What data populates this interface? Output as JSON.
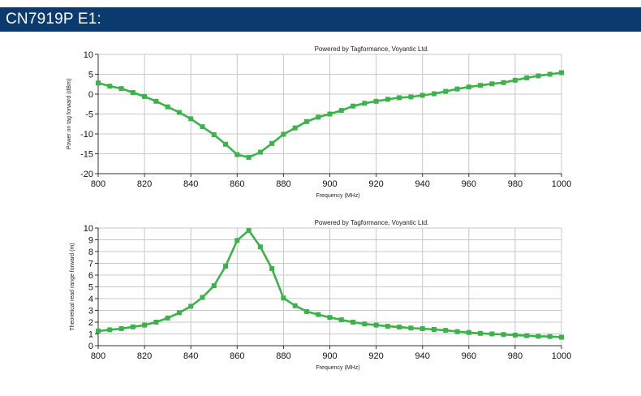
{
  "header": {
    "title": "CN7919P E1:"
  },
  "colors": {
    "header_bg": "#0b3a6e",
    "series": "#3cb34a",
    "grid": "#c8c8c8"
  },
  "chart_data": [
    {
      "type": "line",
      "annotation": "Powered by Tagformance, Voyantic Ltd.",
      "xlabel": "Frequency (MHz)",
      "ylabel": "Power on tag forward (dBm)",
      "xlim": [
        800,
        1000
      ],
      "ylim": [
        -20,
        10
      ],
      "xticks": [
        800,
        820,
        840,
        860,
        880,
        900,
        920,
        940,
        960,
        980,
        1000
      ],
      "yticks": [
        -20,
        -15,
        -10,
        -5,
        0,
        5,
        10
      ],
      "grid": true,
      "x": [
        800,
        805,
        810,
        815,
        820,
        825,
        830,
        835,
        840,
        845,
        850,
        855,
        860,
        865,
        870,
        875,
        880,
        885,
        890,
        895,
        900,
        905,
        910,
        915,
        920,
        925,
        930,
        935,
        940,
        945,
        950,
        955,
        960,
        965,
        970,
        975,
        980,
        985,
        990,
        995,
        1000
      ],
      "values": [
        2.8,
        2.0,
        1.4,
        0.4,
        -0.6,
        -1.8,
        -3.2,
        -4.6,
        -6.2,
        -8.2,
        -10.2,
        -12.6,
        -15.2,
        -15.9,
        -14.6,
        -12.4,
        -10.1,
        -8.5,
        -6.9,
        -5.8,
        -5.0,
        -4.1,
        -3.0,
        -2.3,
        -1.8,
        -1.3,
        -0.9,
        -0.7,
        -0.3,
        0.1,
        0.7,
        1.3,
        1.8,
        2.2,
        2.6,
        2.9,
        3.5,
        4.1,
        4.6,
        5.0,
        5.4
      ]
    },
    {
      "type": "line",
      "annotation": "Powered by Tagformance, Voyantic Ltd.",
      "xlabel": "Frequency (MHz)",
      "ylabel": "Theoretical read range forward (m)",
      "xlim": [
        800,
        1000
      ],
      "ylim": [
        0,
        10
      ],
      "xticks": [
        800,
        820,
        840,
        860,
        880,
        900,
        920,
        940,
        960,
        980,
        1000
      ],
      "yticks": [
        0,
        1,
        2,
        3,
        4,
        5,
        6,
        7,
        8,
        9,
        10
      ],
      "grid": true,
      "x": [
        800,
        805,
        810,
        815,
        820,
        825,
        830,
        835,
        840,
        845,
        850,
        855,
        860,
        865,
        870,
        875,
        880,
        885,
        890,
        895,
        900,
        905,
        910,
        915,
        920,
        925,
        930,
        935,
        940,
        945,
        950,
        955,
        960,
        965,
        970,
        975,
        980,
        985,
        990,
        995,
        1000
      ],
      "values": [
        1.25,
        1.35,
        1.45,
        1.6,
        1.75,
        2.0,
        2.35,
        2.8,
        3.35,
        4.1,
        5.1,
        6.75,
        8.95,
        9.8,
        8.4,
        6.55,
        4.05,
        3.4,
        2.9,
        2.65,
        2.4,
        2.2,
        2.0,
        1.85,
        1.75,
        1.65,
        1.58,
        1.5,
        1.45,
        1.38,
        1.3,
        1.2,
        1.12,
        1.05,
        1.0,
        0.95,
        0.9,
        0.85,
        0.8,
        0.78,
        0.72
      ]
    }
  ]
}
